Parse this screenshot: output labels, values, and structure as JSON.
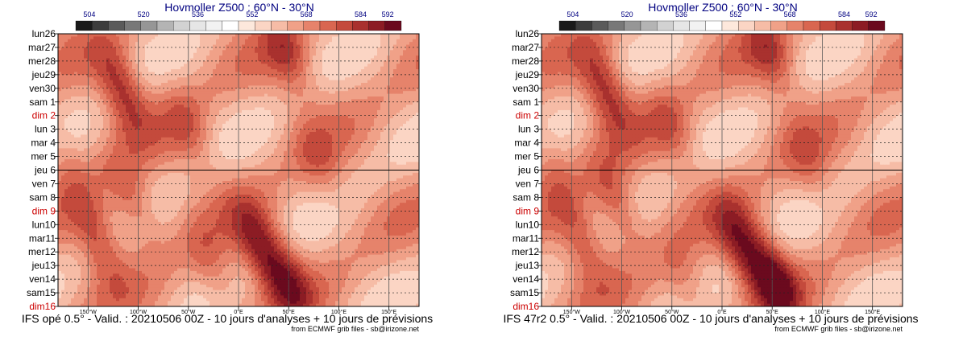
{
  "colors": {
    "weekday": "#000000",
    "sunday": "#cc0000",
    "title": "#000080",
    "colorbar": [
      "#1a1a1a",
      "#3c3c3c",
      "#5a5a5a",
      "#787878",
      "#969696",
      "#b4b4b4",
      "#d2d2d2",
      "#e6e6e6",
      "#f2f2f2",
      "#ffffff",
      "#fde8dc",
      "#fbd5c4",
      "#f6bca6",
      "#f0a188",
      "#e6836b",
      "#d96650",
      "#c44a3c",
      "#a9312e",
      "#8c1c24",
      "#6b0a1e"
    ]
  },
  "panels": [
    {
      "title": "Hovmoller Z500 : 60°N - 30°N",
      "footer": "IFS opé 0.5° - Valid. : 20210506 00Z - 10 jours d'analyses + 10 jours de prévisions",
      "credit": "from ECMWF grib files - sb@irizone.net"
    },
    {
      "title": "Hovmoller Z500 : 60°N - 30°N",
      "footer": "IFS 47r2 0.5° - Valid. : 20210506 00Z - 10 jours d'analyses + 10 jours de prévisions",
      "credit": "from ECMWF grib files - sb@irizone.net"
    }
  ],
  "chart_data": [
    {
      "type": "heatmap",
      "title": "Hovmoller Z500 : 60°N - 30°N",
      "colorbar_ticks": [
        "504",
        "520",
        "536",
        "552",
        "568",
        "584",
        "592"
      ],
      "colorbar_range": [
        500,
        596
      ],
      "colorbar_step": 4,
      "x_ticks": [
        "150°W",
        "100°W",
        "50°W",
        "0°E",
        "50°E",
        "100°E",
        "150°E"
      ],
      "x_range": [
        -180,
        180
      ],
      "y_ticks": [
        {
          "label": "lun26",
          "sunday": false
        },
        {
          "label": "mar27",
          "sunday": false
        },
        {
          "label": "mer28",
          "sunday": false
        },
        {
          "label": "jeu29",
          "sunday": false
        },
        {
          "label": "ven30",
          "sunday": false
        },
        {
          "label": "sam 1",
          "sunday": false
        },
        {
          "label": "dim 2",
          "sunday": true
        },
        {
          "label": "lun 3",
          "sunday": false
        },
        {
          "label": "mar 4",
          "sunday": false
        },
        {
          "label": "mer 5",
          "sunday": false
        },
        {
          "label": "jeu 6",
          "sunday": false
        },
        {
          "label": "ven 7",
          "sunday": false
        },
        {
          "label": "sam 8",
          "sunday": false
        },
        {
          "label": "dim 9",
          "sunday": true
        },
        {
          "label": "lun10",
          "sunday": false
        },
        {
          "label": "mar11",
          "sunday": false
        },
        {
          "label": "mer12",
          "sunday": false
        },
        {
          "label": "jeu13",
          "sunday": false
        },
        {
          "label": "ven14",
          "sunday": false
        },
        {
          "label": "sam15",
          "sunday": false
        },
        {
          "label": "dim16",
          "sunday": true
        }
      ],
      "analysis_forecast_split": "jeu 6",
      "ridges": [
        {
          "lon": -117,
          "day": 4.0,
          "value": 572
        },
        {
          "lon": -105,
          "day": 12.5,
          "value": 566
        },
        {
          "lon": -140,
          "day": 15.0,
          "value": 568
        },
        {
          "lon": 20,
          "day": 15.5,
          "value": 572
        },
        {
          "lon": 48,
          "day": 18.0,
          "value": 570
        },
        {
          "lon": 48,
          "day": 1.5,
          "value": 566
        },
        {
          "lon": -50,
          "day": 7.0,
          "value": 562
        },
        {
          "lon": -25,
          "day": 17.5,
          "value": 562
        },
        {
          "lon": -175,
          "day": 9.0,
          "value": 560
        },
        {
          "lon": 80,
          "day": 9.5,
          "value": 560
        }
      ]
    },
    {
      "type": "heatmap",
      "title": "Hovmoller Z500 : 60°N - 30°N",
      "colorbar_ticks": [
        "504",
        "520",
        "536",
        "552",
        "568",
        "584",
        "592"
      ],
      "colorbar_range": [
        500,
        596
      ],
      "colorbar_step": 4,
      "x_ticks": [
        "150°W",
        "100°W",
        "50°W",
        "0°E",
        "50°E",
        "100°E",
        "150°E"
      ],
      "x_range": [
        -180,
        180
      ],
      "y_ticks": [
        {
          "label": "lun26",
          "sunday": false
        },
        {
          "label": "mar27",
          "sunday": false
        },
        {
          "label": "mer28",
          "sunday": false
        },
        {
          "label": "jeu29",
          "sunday": false
        },
        {
          "label": "ven30",
          "sunday": false
        },
        {
          "label": "sam 1",
          "sunday": false
        },
        {
          "label": "dim 2",
          "sunday": true
        },
        {
          "label": "lun 3",
          "sunday": false
        },
        {
          "label": "mar 4",
          "sunday": false
        },
        {
          "label": "mer 5",
          "sunday": false
        },
        {
          "label": "jeu 6",
          "sunday": false
        },
        {
          "label": "ven 7",
          "sunday": false
        },
        {
          "label": "sam 8",
          "sunday": false
        },
        {
          "label": "dim 9",
          "sunday": true
        },
        {
          "label": "lun10",
          "sunday": false
        },
        {
          "label": "mar11",
          "sunday": false
        },
        {
          "label": "mer12",
          "sunday": false
        },
        {
          "label": "jeu13",
          "sunday": false
        },
        {
          "label": "ven14",
          "sunday": false
        },
        {
          "label": "sam15",
          "sunday": false
        },
        {
          "label": "dim16",
          "sunday": true
        }
      ],
      "analysis_forecast_split": "jeu 6",
      "ridges": [
        {
          "lon": -117,
          "day": 4.0,
          "value": 572
        },
        {
          "lon": -105,
          "day": 12.5,
          "value": 568
        },
        {
          "lon": -140,
          "day": 15.0,
          "value": 566
        },
        {
          "lon": 20,
          "day": 15.5,
          "value": 574
        },
        {
          "lon": 52,
          "day": 18.0,
          "value": 576
        },
        {
          "lon": 48,
          "day": 1.5,
          "value": 566
        },
        {
          "lon": -50,
          "day": 7.0,
          "value": 562
        },
        {
          "lon": -35,
          "day": 18.5,
          "value": 562
        },
        {
          "lon": -175,
          "day": 9.0,
          "value": 560
        },
        {
          "lon": 85,
          "day": 9.5,
          "value": 560
        }
      ]
    }
  ]
}
